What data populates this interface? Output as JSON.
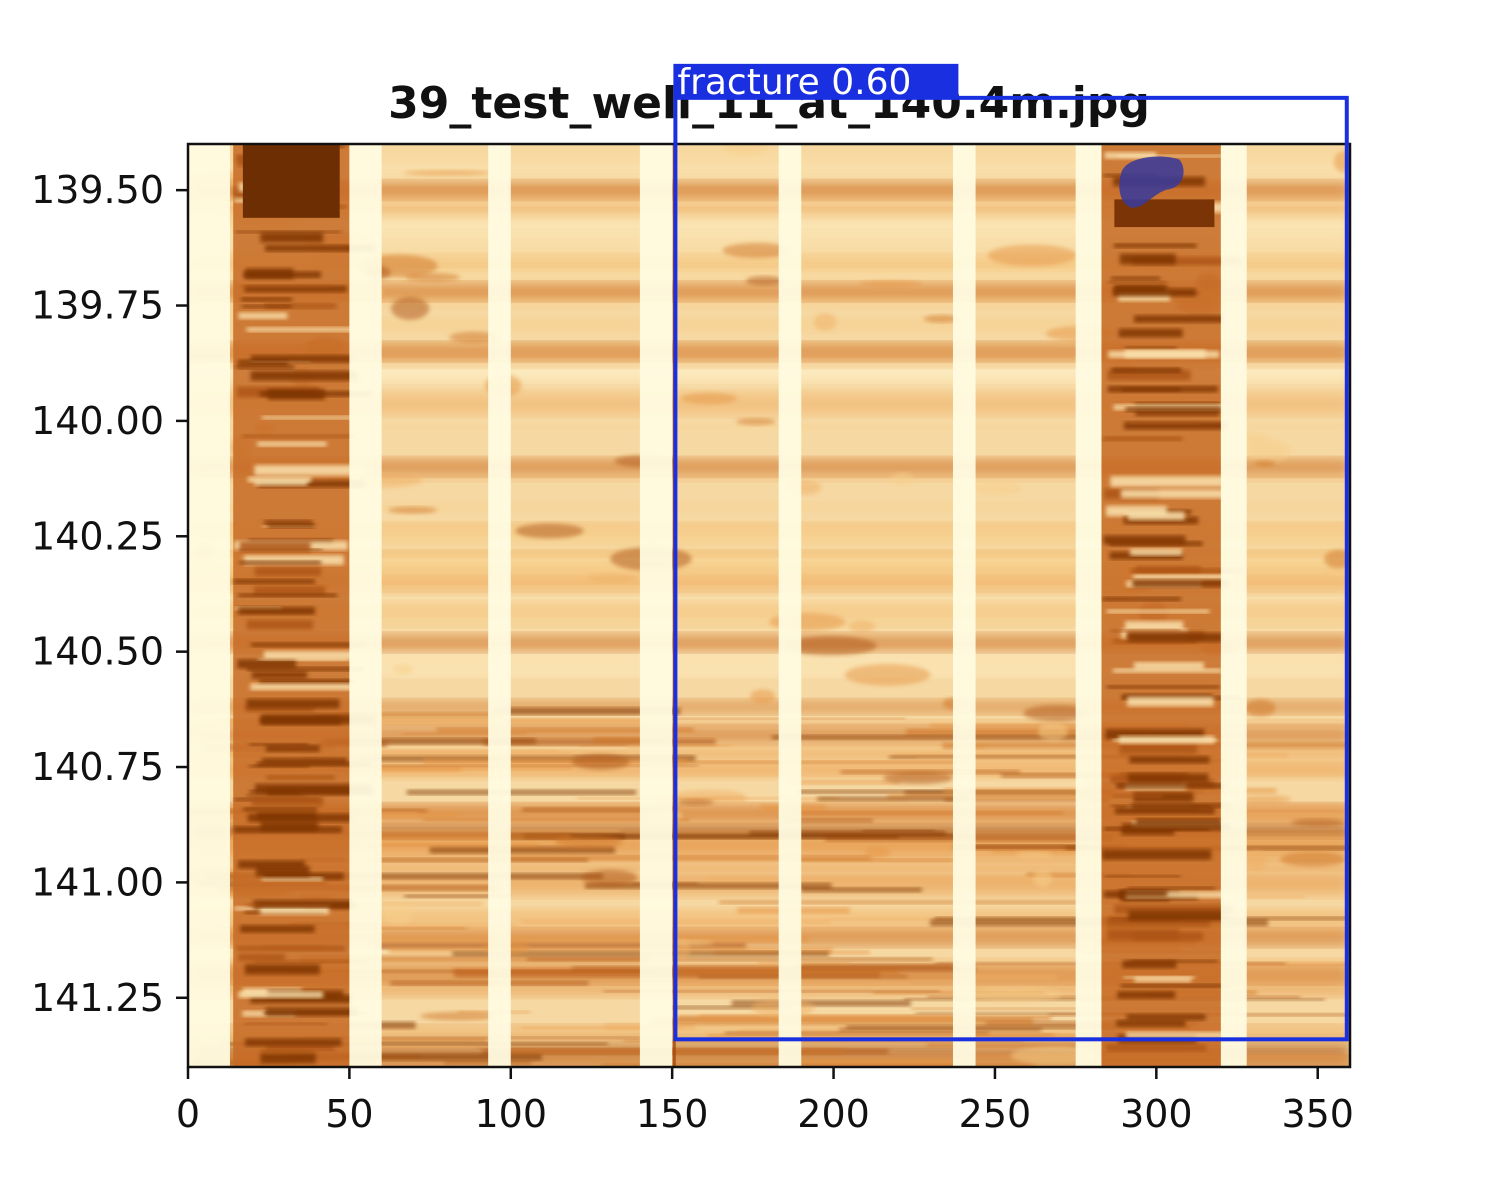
{
  "chart_data": {
    "type": "heatmap",
    "title": "39_test_well_11_at_140.4m.jpg",
    "xlabel": "",
    "ylabel": "",
    "xlim": [
      0,
      360
    ],
    "ylim": [
      141.4,
      139.4
    ],
    "y_inverted": true,
    "colormap": "YlOrBr",
    "x_ticks": [
      0,
      50,
      100,
      150,
      200,
      250,
      300,
      350
    ],
    "y_ticks": [
      139.5,
      139.75,
      140.0,
      140.25,
      140.5,
      140.75,
      141.0,
      141.25
    ],
    "x_tick_labels": [
      "0",
      "50",
      "100",
      "150",
      "200",
      "250",
      "300",
      "350"
    ],
    "y_tick_labels": [
      "139.50",
      "139.75",
      "140.00",
      "140.25",
      "140.50",
      "140.75",
      "141.00",
      "141.25"
    ],
    "grid": false,
    "pad_stripes": [
      {
        "x": [
          0,
          13
        ]
      },
      {
        "x": [
          50,
          60
        ]
      },
      {
        "x": [
          93,
          100
        ]
      },
      {
        "x": [
          140,
          150
        ]
      },
      {
        "x": [
          183,
          190
        ]
      },
      {
        "x": [
          237,
          244
        ]
      },
      {
        "x": [
          275,
          283
        ]
      },
      {
        "x": [
          320,
          328
        ]
      }
    ],
    "dark_pads": [
      {
        "x": [
          14,
          50
        ],
        "depth": [
          139.4,
          141.4
        ]
      },
      {
        "x": [
          283,
          320
        ],
        "depth": [
          139.4,
          141.4
        ]
      }
    ],
    "dark_bands": [
      139.5,
      139.72,
      139.85,
      140.1,
      140.48,
      140.68,
      140.85,
      141.12,
      141.2
    ],
    "detection": {
      "label": "fracture",
      "score": "0.60",
      "x": [
        151,
        359
      ],
      "depth": [
        139.3,
        141.34
      ],
      "color": "#1a2fe0",
      "mask_color": "#3a3a9a",
      "mask_center": [
        299,
        139.49
      ]
    }
  }
}
